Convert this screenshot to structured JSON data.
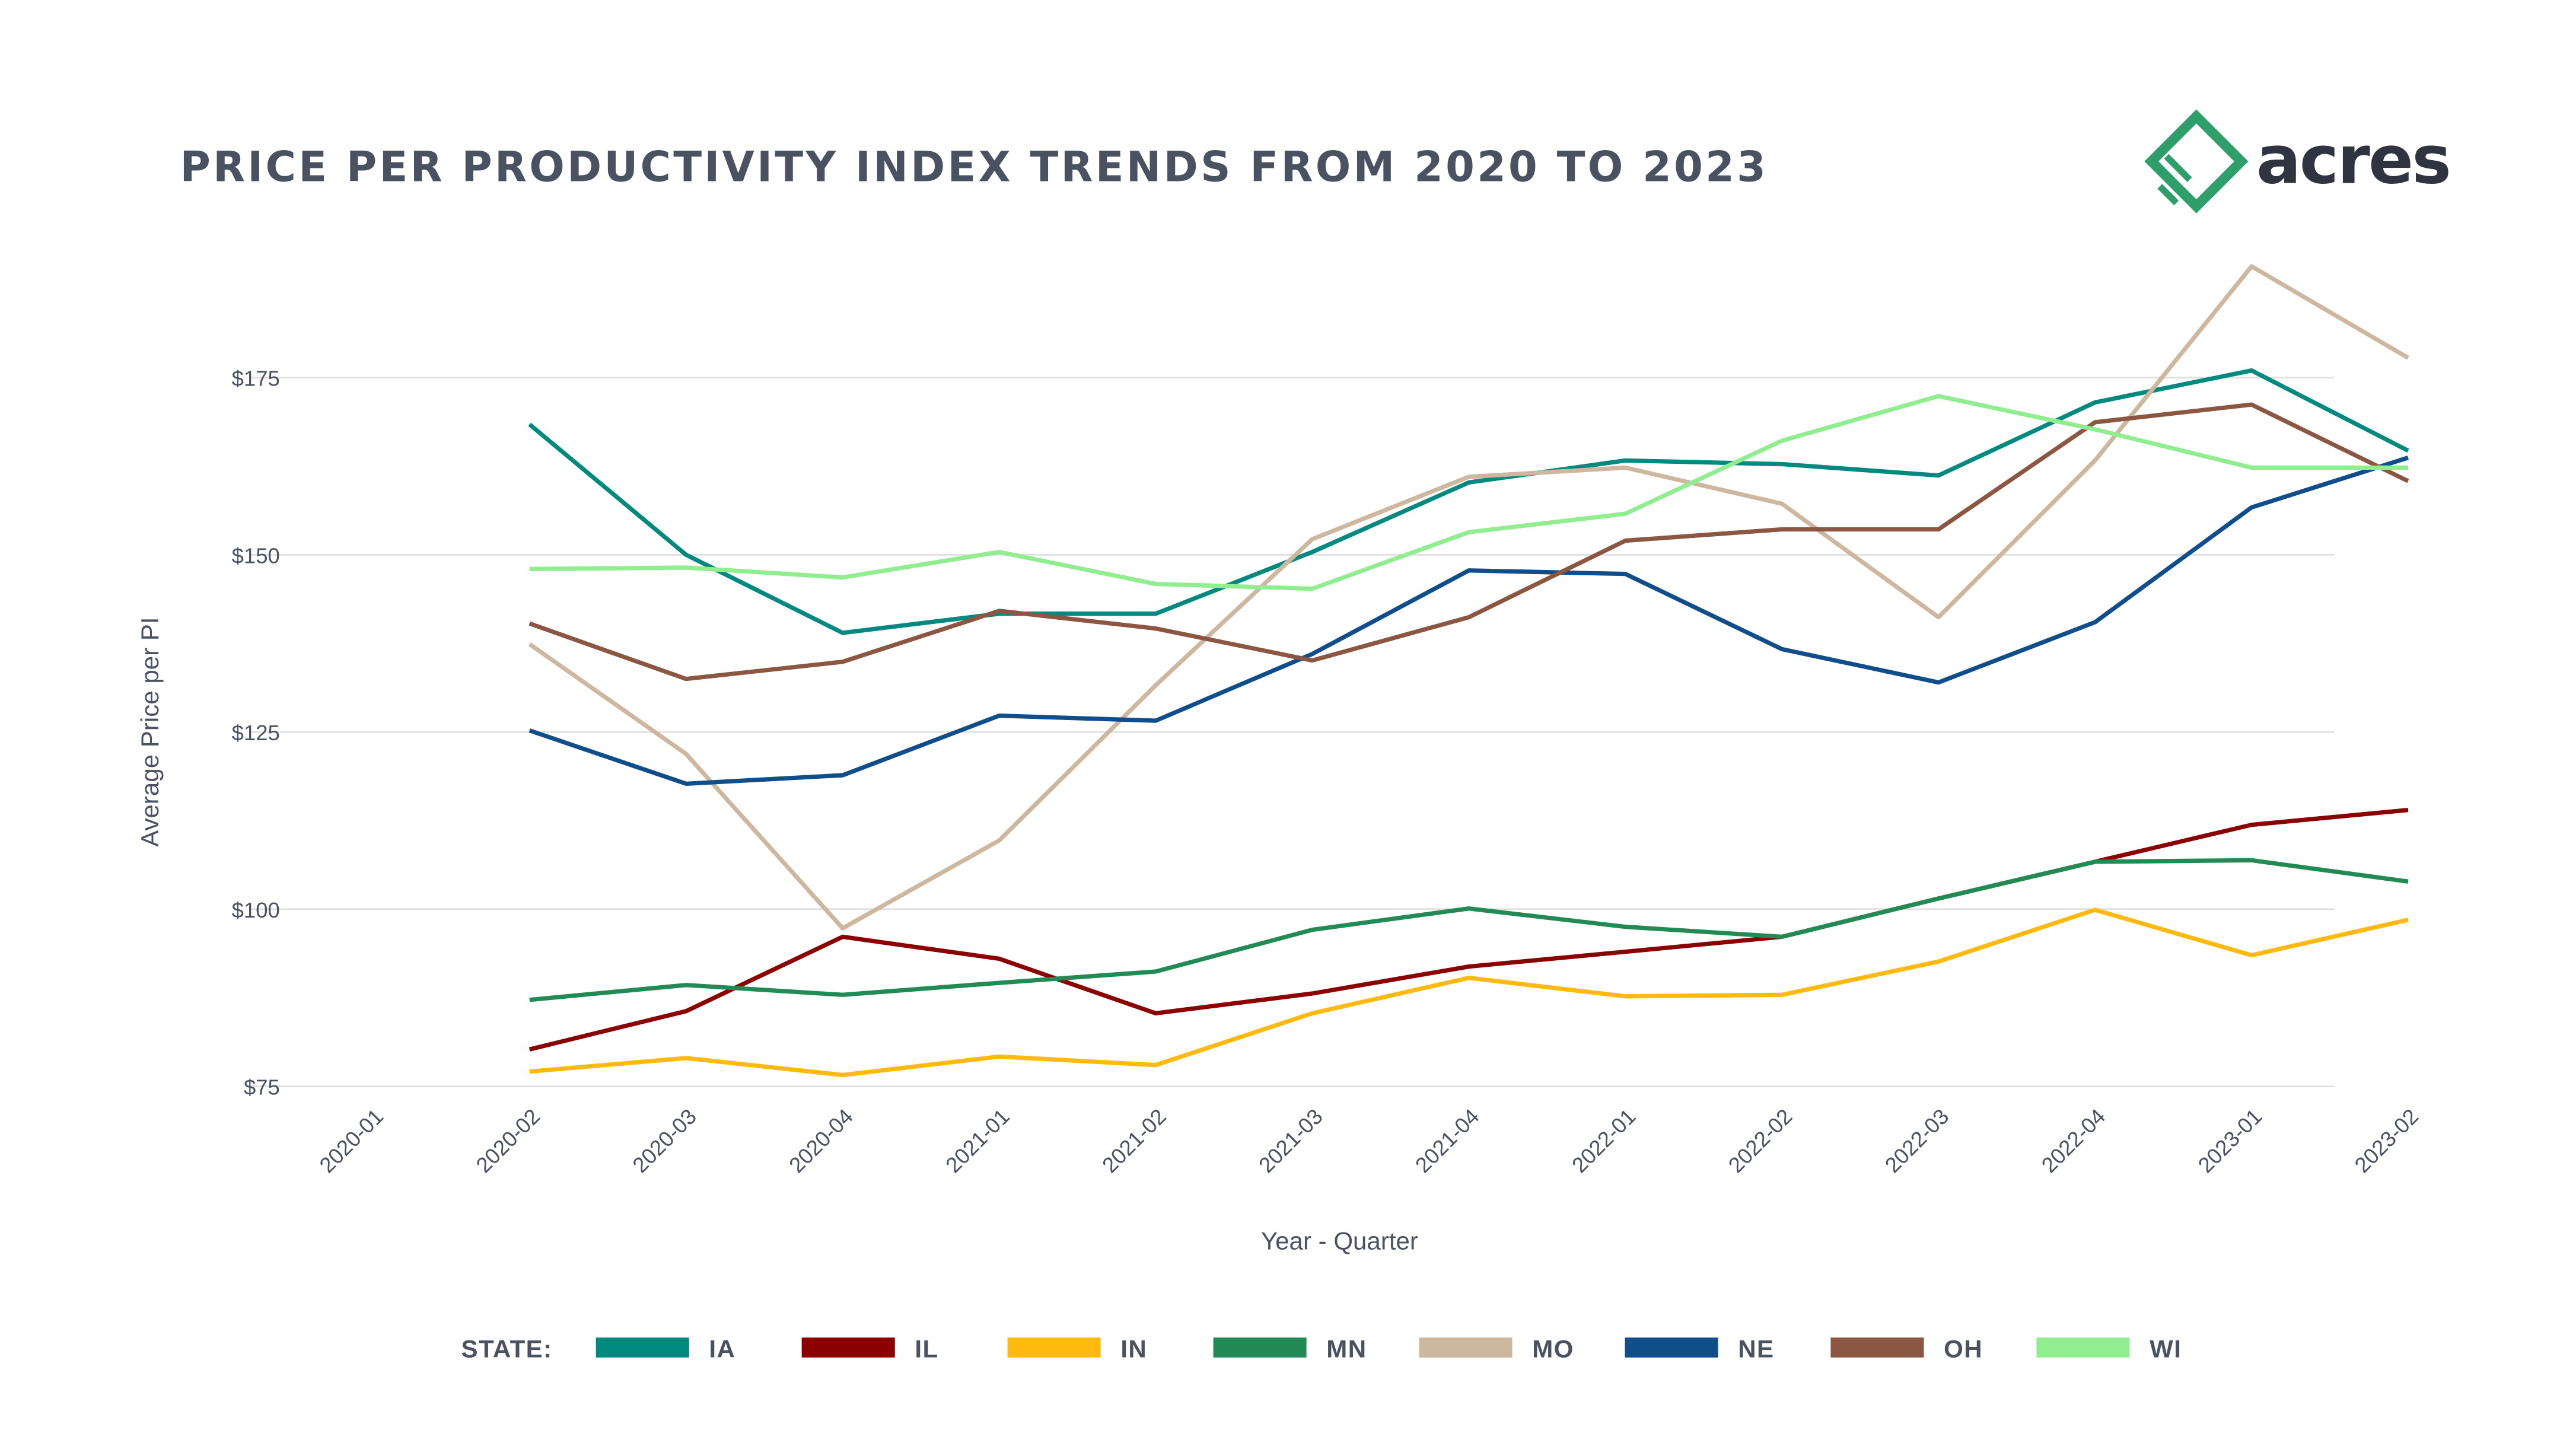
{
  "chart_data": {
    "type": "line",
    "title": "PRICE PER PRODUCTIVITY INDEX TRENDS FROM 2020 TO 2023",
    "xlabel": "Year - Quarter",
    "ylabel": "Average Price per PI",
    "categories": [
      "2020-01",
      "2020-02",
      "2020-03",
      "2020-04",
      "2021-01",
      "2021-02",
      "2021-03",
      "2021-04",
      "2022-01",
      "2022-02",
      "2022-03",
      "2022-04",
      "2023-01",
      "2023-02"
    ],
    "yticks": [
      75,
      100,
      125,
      150,
      175
    ],
    "ytick_labels": [
      "$75",
      "$100",
      "$125",
      "$150",
      "$175"
    ],
    "ylim": [
      75,
      193
    ],
    "grid": true,
    "legend_title": "STATE:",
    "legend_position": "bottom",
    "series": [
      {
        "name": "IA",
        "color": "#00897f",
        "values": [
          null,
          168.4,
          150,
          139,
          141.7,
          141.7,
          150.4,
          160.2,
          163.3,
          162.8,
          161.2,
          171.5,
          176,
          164.7
        ]
      },
      {
        "name": "IL",
        "color": "#8b0000",
        "values": [
          null,
          80.2,
          85.6,
          96.1,
          93,
          85.3,
          88.1,
          91.9,
          94,
          96.1,
          101.5,
          106.7,
          111.9,
          114
        ]
      },
      {
        "name": "IN",
        "color": "#ffb90f",
        "values": [
          null,
          77.1,
          79,
          76.6,
          79.2,
          78,
          85.3,
          90.3,
          87.7,
          87.9,
          92.6,
          99.9,
          93.5,
          98.5
        ]
      },
      {
        "name": "MN",
        "color": "#228b55",
        "values": [
          null,
          87.2,
          89.3,
          87.9,
          89.6,
          91.2,
          97.1,
          100.1,
          97.5,
          96.1,
          101.5,
          106.7,
          106.9,
          103.9
        ]
      },
      {
        "name": "MO",
        "color": "#cdb79e",
        "values": [
          null,
          137.4,
          121.9,
          97.3,
          109.7,
          131.6,
          152.2,
          161,
          162.3,
          157.2,
          141.2,
          163.3,
          190.7,
          177.8
        ]
      },
      {
        "name": "NE",
        "color": "#104e8b",
        "values": [
          null,
          125.2,
          117.7,
          118.9,
          127.3,
          126.6,
          136,
          147.8,
          147.3,
          136.7,
          132,
          140.5,
          156.7,
          163.7
        ]
      },
      {
        "name": "OH",
        "color": "#8b5742",
        "values": [
          null,
          140.3,
          132.5,
          134.9,
          142.1,
          139.6,
          135.1,
          141.2,
          152,
          153.6,
          153.6,
          168.7,
          171.2,
          160.4
        ]
      },
      {
        "name": "WI",
        "color": "#90ee90",
        "values": [
          null,
          148,
          148.2,
          146.8,
          150.4,
          145.9,
          145.2,
          153.2,
          155.8,
          166.1,
          172.4,
          167.7,
          162.3,
          162.3
        ]
      }
    ]
  },
  "logo": {
    "text": "acres",
    "color": "#2e9e6a"
  }
}
